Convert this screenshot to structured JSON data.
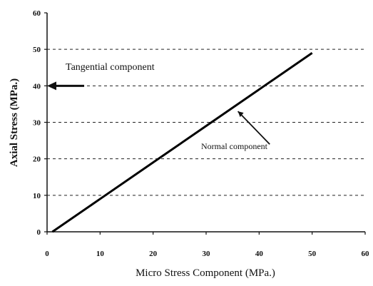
{
  "chart_data": {
    "type": "line",
    "xlabel": "Micro Stress Component (MPa.)",
    "ylabel": "Axial Stress (MPa.)",
    "xlim": [
      0,
      60
    ],
    "ylim": [
      0,
      60
    ],
    "x_ticks": [
      0,
      10,
      20,
      30,
      40,
      50,
      60
    ],
    "y_ticks": [
      0,
      10,
      20,
      30,
      40,
      50,
      60
    ],
    "grid": "horizontal dashed",
    "series": [
      {
        "values": [
          [
            1,
            0
          ],
          [
            10,
            9
          ],
          [
            20,
            19
          ],
          [
            30,
            29
          ],
          [
            40,
            39
          ],
          [
            50,
            49
          ]
        ],
        "color": "#000000"
      }
    ],
    "annotations": [
      {
        "text": "Tangential component",
        "arrow_tip": [
          0,
          40
        ],
        "arrow_tail": [
          7,
          40
        ]
      },
      {
        "text": "Normal component",
        "arrow_tip": [
          36,
          33
        ],
        "arrow_tail": [
          42,
          24
        ]
      }
    ]
  }
}
